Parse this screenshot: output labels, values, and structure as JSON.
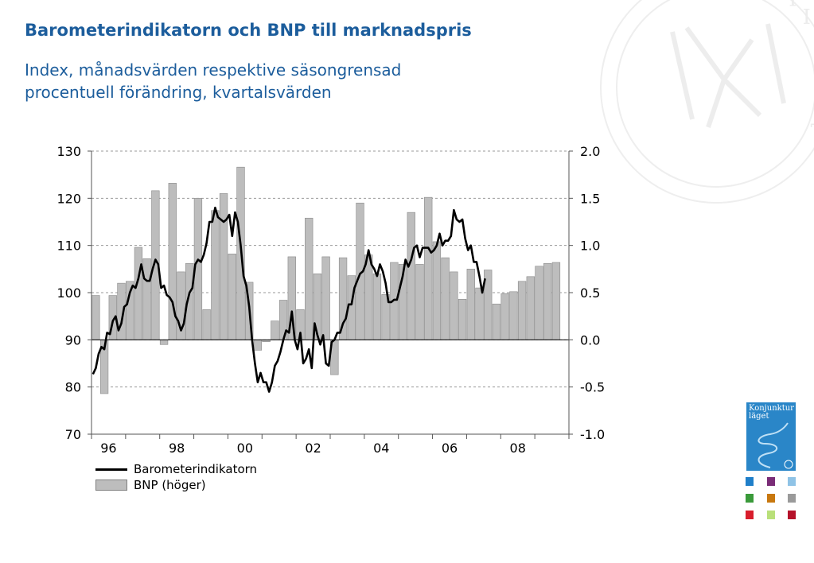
{
  "title": "Barometerindikatorn och BNP till marknadspris",
  "subtitle_lines": [
    "Index, månadsvärden respektive säsongrensad",
    "procentuell förändring, kvartalsvärden"
  ],
  "watermark": {
    "letters": "INSTITUTET",
    "monogram": "KI"
  },
  "cover": {
    "title": "Konjunktur läget",
    "color": "#2a86c8"
  },
  "cover_tiles": [
    {
      "color": "#1f7fc9"
    },
    {
      "color": "#7a2c77"
    },
    {
      "color": "#8fc3e6"
    },
    {
      "color": "#3a9a3a"
    },
    {
      "color": "#c8780f"
    },
    {
      "color": "#9a9a9a"
    },
    {
      "color": "#d81d2c"
    },
    {
      "color": "#b9e07a"
    },
    {
      "color": "#b5122a"
    }
  ],
  "chart_data": {
    "type": "bar+line",
    "x_tick_labels": [
      "96",
      "98",
      "00",
      "02",
      "04",
      "06",
      "08"
    ],
    "y_left": {
      "min": 70,
      "max": 130,
      "ticks": [
        70,
        80,
        90,
        100,
        110,
        120,
        130
      ],
      "labels": [
        "70",
        "80",
        "90",
        "100",
        "110",
        "120",
        "130"
      ]
    },
    "y_right": {
      "min": -1.0,
      "max": 2.0,
      "ticks": [
        -1.0,
        -0.5,
        0.0,
        0.5,
        1.0,
        1.5,
        2.0
      ],
      "labels": [
        "-1.0",
        "-0.5",
        "0.0",
        "0.5",
        "1.0",
        "1.5",
        "2.0"
      ]
    },
    "grid": true,
    "legend_position": "bottom-left",
    "series": [
      {
        "name": "Barometerindikatorn",
        "type": "line",
        "axis": "left",
        "color": "#000000",
        "start": "1996-01",
        "frequency": "monthly",
        "values": [
          82.7,
          84.0,
          87.0,
          88.5,
          88.0,
          91.5,
          91.2,
          94.0,
          95.0,
          92.0,
          93.5,
          97.0,
          97.5,
          100.0,
          101.5,
          101.0,
          103.0,
          106.0,
          103.0,
          102.5,
          102.5,
          105.0,
          107.0,
          106.0,
          101.0,
          101.5,
          99.5,
          99.0,
          98.0,
          95.0,
          94.0,
          92.0,
          93.5,
          97.5,
          100.0,
          101.0,
          106.0,
          107.0,
          106.5,
          108.0,
          110.5,
          115.0,
          115.0,
          118.0,
          116.0,
          115.5,
          115.0,
          115.5,
          116.5,
          112.0,
          117.0,
          115.0,
          110.0,
          103.5,
          101.5,
          97.0,
          90.0,
          85.0,
          81.0,
          83.0,
          81.0,
          81.0,
          79.0,
          81.0,
          84.5,
          85.5,
          87.5,
          90.0,
          92.0,
          91.5,
          96.0,
          90.0,
          88.0,
          91.5,
          85.0,
          86.0,
          88.0,
          84.0,
          93.5,
          91.0,
          89.0,
          91.0,
          85.0,
          84.5,
          89.5,
          90.0,
          91.5,
          91.5,
          93.5,
          94.5,
          97.5,
          97.5,
          101.0,
          102.5,
          104.0,
          104.5,
          106.0,
          109.0,
          106.0,
          105.0,
          103.5,
          106.0,
          104.5,
          102.0,
          98.0,
          98.0,
          98.5,
          98.5,
          101.0,
          103.5,
          107.0,
          105.5,
          107.0,
          109.5,
          110.0,
          107.5,
          109.5,
          109.5,
          109.5,
          108.5,
          109.0,
          110.0,
          112.5,
          110.0,
          111.0,
          111.0,
          112.0,
          117.5,
          115.5,
          115.0,
          115.5,
          111.5,
          109.0,
          110.0,
          106.5,
          106.5,
          103.5,
          100.0,
          103.0
        ]
      },
      {
        "name": "BNP (höger)",
        "type": "bar",
        "axis": "right",
        "color": "#bdbdbd",
        "start": "1996-Q1",
        "frequency": "quarterly",
        "values": [
          0.47,
          -0.57,
          0.47,
          0.6,
          0.62,
          0.98,
          0.86,
          1.58,
          -0.05,
          1.66,
          0.72,
          0.81,
          1.5,
          0.32,
          1.37,
          1.55,
          0.91,
          1.83,
          0.61,
          -0.11,
          -0.02,
          0.2,
          0.42,
          0.88,
          0.32,
          1.29,
          0.7,
          0.88,
          -0.37,
          0.87,
          0.68,
          1.45,
          0.9,
          0.7,
          0.48,
          0.82,
          0.8,
          1.35,
          0.8,
          1.51,
          1.04,
          0.87,
          0.72,
          0.43,
          0.75,
          0.55,
          0.74,
          0.38,
          0.49,
          0.51,
          0.62,
          0.67,
          0.78,
          0.81,
          0.82
        ]
      }
    ]
  }
}
